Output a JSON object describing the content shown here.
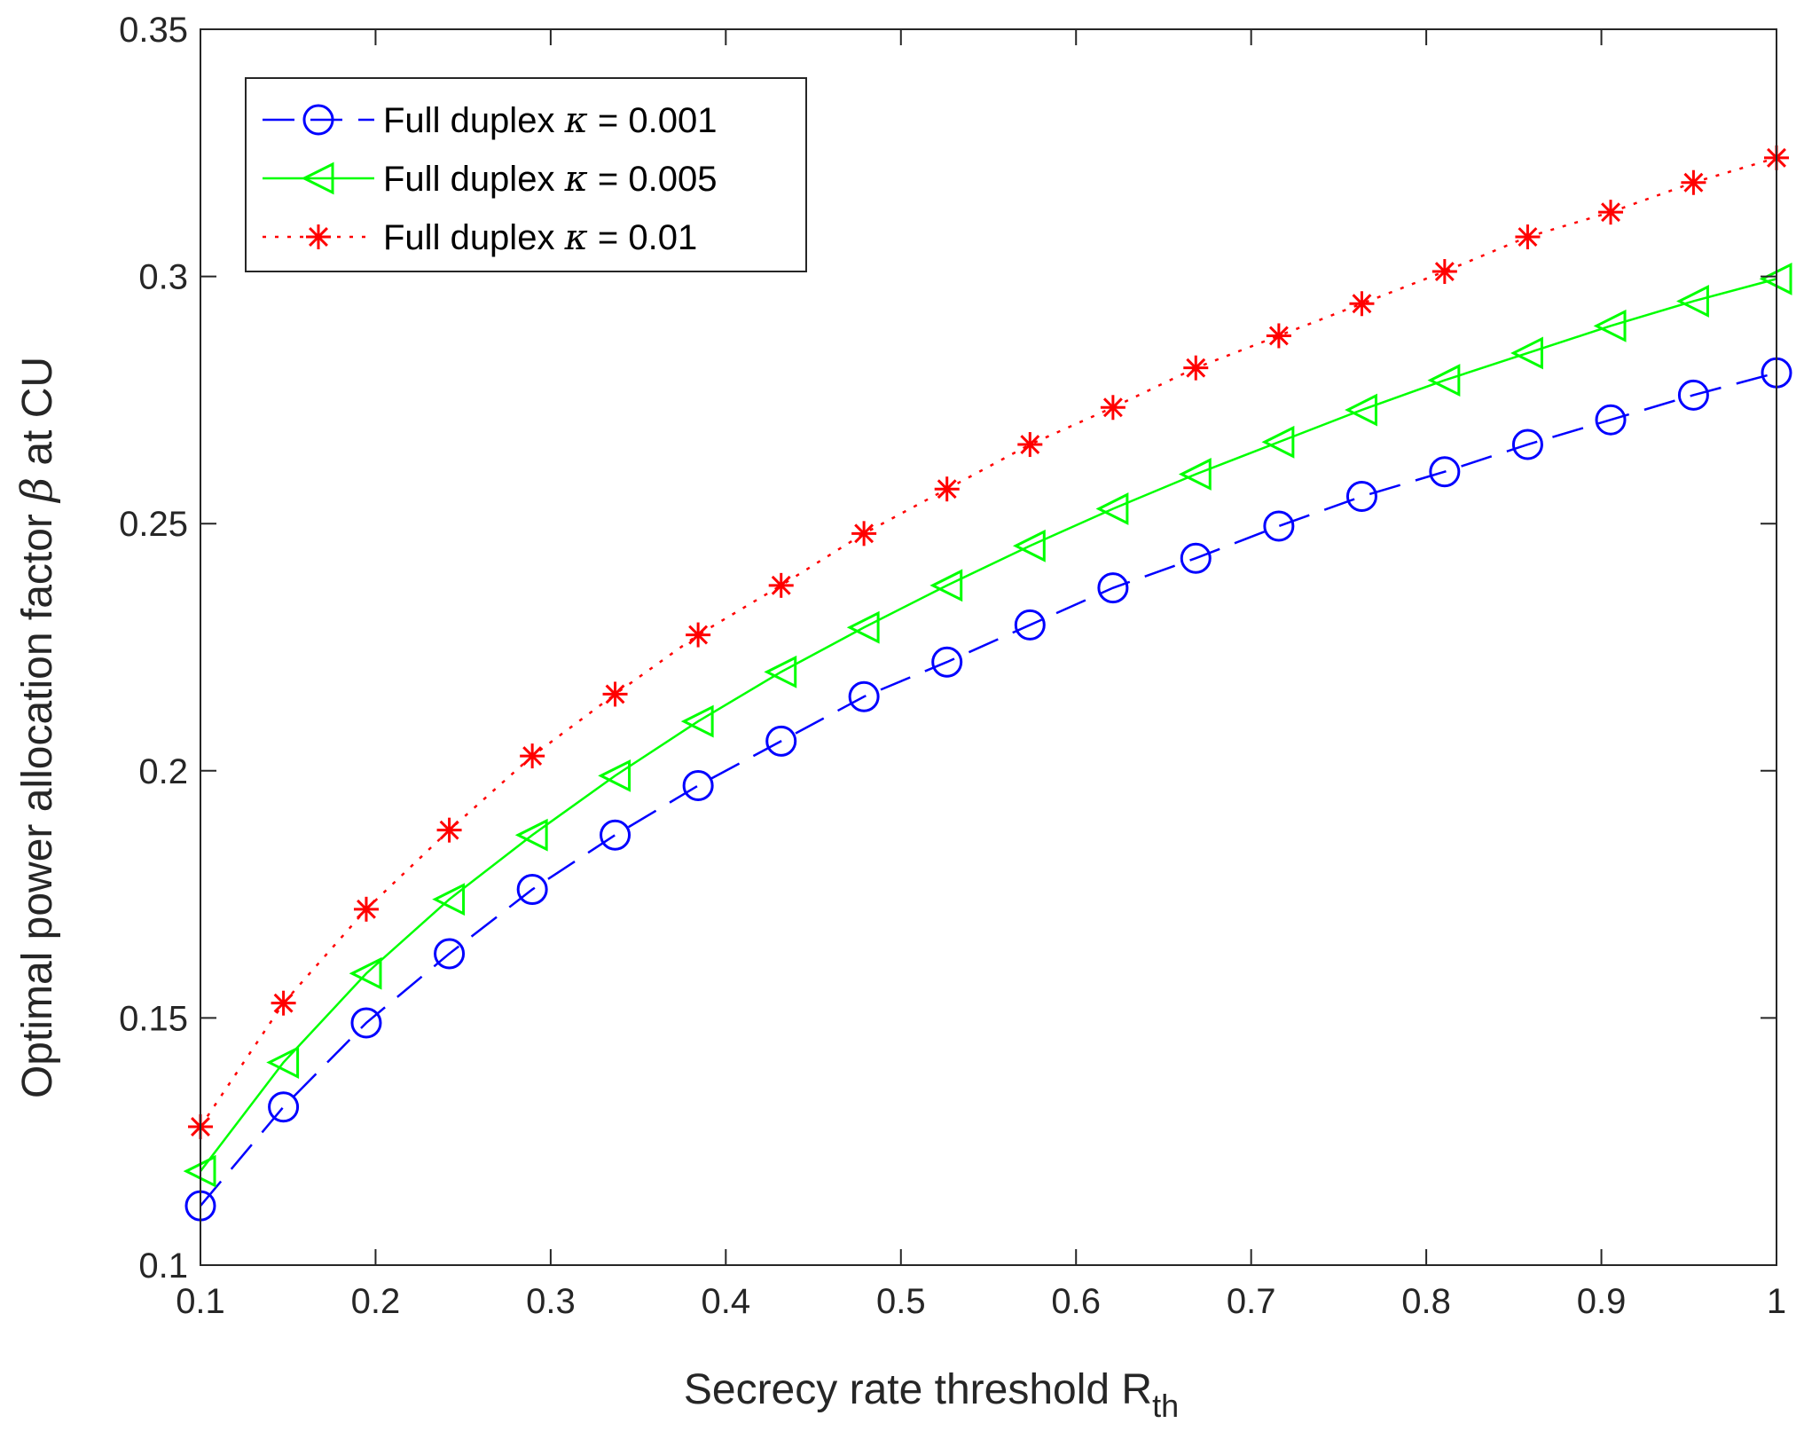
{
  "chart_data": {
    "type": "line",
    "title": "",
    "xlabel": "Secrecy rate threshold R",
    "xlabel_sub": "th",
    "ylabel_pre": "Optimal power allocation factor ",
    "ylabel_symbol": "β",
    "ylabel_post": " at CU",
    "xlim": [
      0.1,
      1
    ],
    "ylim": [
      0.1,
      0.35
    ],
    "xticks": [
      0.1,
      0.2,
      0.3,
      0.4,
      0.5,
      0.6,
      0.7,
      0.8,
      0.9,
      1
    ],
    "xtick_labels": [
      "0.1",
      "0.2",
      "0.3",
      "0.4",
      "0.5",
      "0.6",
      "0.7",
      "0.8",
      "0.9",
      "1"
    ],
    "yticks": [
      0.1,
      0.15,
      0.2,
      0.25,
      0.3,
      0.35
    ],
    "ytick_labels": [
      "0.1",
      "0.15",
      "0.2",
      "0.25",
      "0.3",
      "0.35"
    ],
    "grid": false,
    "legend_position": "top-left",
    "x": [
      0.1,
      0.1474,
      0.1947,
      0.2421,
      0.2895,
      0.3368,
      0.3842,
      0.4316,
      0.4789,
      0.5263,
      0.5737,
      0.6211,
      0.6684,
      0.7158,
      0.7632,
      0.8105,
      0.8579,
      0.9053,
      0.9526,
      1.0
    ],
    "series": [
      {
        "name": "Full duplex κ = 0.001",
        "legend_prefix": "Full duplex ",
        "legend_symbol": "κ",
        "legend_suffix": " = 0.001",
        "color": "#0000ff",
        "line_style": "dashed",
        "marker": "circle",
        "values": [
          0.112,
          0.132,
          0.149,
          0.163,
          0.176,
          0.187,
          0.197,
          0.206,
          0.215,
          0.222,
          0.2295,
          0.237,
          0.243,
          0.2495,
          0.2555,
          0.2605,
          0.266,
          0.271,
          0.276,
          0.2805
        ]
      },
      {
        "name": "Full duplex κ = 0.005",
        "legend_prefix": "Full duplex ",
        "legend_symbol": "κ",
        "legend_suffix": " = 0.005",
        "color": "#00ff00",
        "line_style": "solid",
        "marker": "triangle-left",
        "values": [
          0.119,
          0.141,
          0.159,
          0.174,
          0.187,
          0.199,
          0.21,
          0.22,
          0.229,
          0.2375,
          0.2455,
          0.253,
          0.26,
          0.2665,
          0.273,
          0.279,
          0.2845,
          0.29,
          0.295,
          0.2995
        ]
      },
      {
        "name": "Full duplex κ = 0.01",
        "legend_prefix": "Full duplex ",
        "legend_symbol": "κ",
        "legend_suffix": " = 0.01",
        "color": "#ff0000",
        "line_style": "dotted",
        "marker": "asterisk",
        "values": [
          0.128,
          0.153,
          0.172,
          0.188,
          0.203,
          0.2155,
          0.2275,
          0.2375,
          0.248,
          0.257,
          0.266,
          0.2735,
          0.2815,
          0.288,
          0.2945,
          0.301,
          0.308,
          0.313,
          0.319,
          0.324
        ]
      }
    ]
  }
}
